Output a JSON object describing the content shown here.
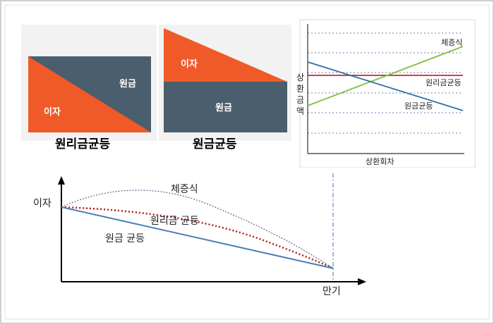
{
  "panel_equal_payment": {
    "title": "원리금균등",
    "interest_label": "이자",
    "principal_label": "원금"
  },
  "panel_equal_principal": {
    "title": "원금균등",
    "interest_label": "이자",
    "principal_label": "원금"
  },
  "repayment_chart": {
    "y_label_chars": [
      "상",
      "환",
      "금",
      "액"
    ],
    "x_label": "상환회차",
    "lines": [
      {
        "key": "graduated",
        "label": "체증식",
        "color": "#7dc142"
      },
      {
        "key": "equal_payment",
        "label": "원리금균등",
        "color": "#c9242b"
      },
      {
        "key": "equal_principal",
        "label": "원금균등",
        "color": "#2e6fa7"
      }
    ]
  },
  "interest_chart": {
    "y_label": "이자",
    "x_label": "만기",
    "curves": [
      {
        "key": "graduated",
        "label": "체증식"
      },
      {
        "key": "equal_payment",
        "label": "원리금 균등"
      },
      {
        "key": "equal_principal",
        "label": "원금 균등"
      }
    ]
  },
  "colors": {
    "orange": "#f05a28",
    "slate": "#4b5e6d",
    "blue": "#4b7fb5",
    "red_dot": "#b3171b",
    "grid": "#6b7fb8"
  }
}
